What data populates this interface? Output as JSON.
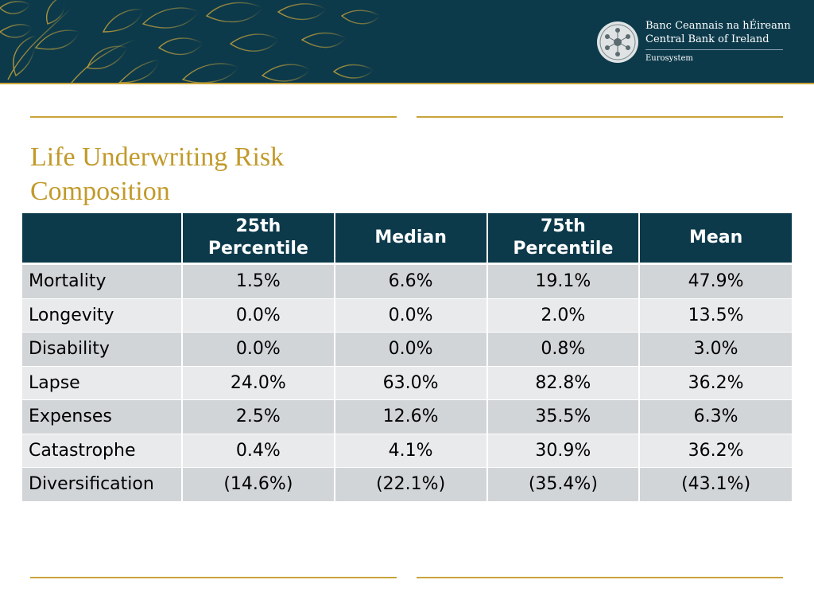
{
  "header": {
    "bank_name_irish": "Banc Ceannais na hÉireann",
    "bank_name_english": "Central Bank of Ireland",
    "eurosystem": "Eurosystem",
    "seal_icon": "central-bank-seal-icon"
  },
  "title": {
    "line1": "Life Underwriting Risk",
    "line2": "Composition"
  },
  "table": {
    "columns": [
      "",
      "25th Percentile",
      "Median",
      "75th Percentile",
      "Mean"
    ],
    "rows": [
      {
        "label": "Mortality",
        "values": [
          "1.5%",
          "6.6%",
          "19.1%",
          "47.9%"
        ]
      },
      {
        "label": "Longevity",
        "values": [
          "0.0%",
          "0.0%",
          "2.0%",
          "13.5%"
        ]
      },
      {
        "label": "Disability",
        "values": [
          "0.0%",
          "0.0%",
          "0.8%",
          "3.0%"
        ]
      },
      {
        "label": "Lapse",
        "values": [
          "24.0%",
          "63.0%",
          "82.8%",
          "36.2%"
        ]
      },
      {
        "label": "Expenses",
        "values": [
          "2.5%",
          "12.6%",
          "35.5%",
          "6.3%"
        ]
      },
      {
        "label": "Catastrophe",
        "values": [
          "0.4%",
          "4.1%",
          "30.9%",
          "36.2%"
        ]
      },
      {
        "label": "Diversification",
        "values": [
          "(14.6%)",
          "(22.1%)",
          "(35.4%)",
          "(43.1%)"
        ]
      }
    ]
  },
  "colors": {
    "header_bg": "#0c3a4b",
    "gold": "#c9a43a",
    "title": "#c19a2a",
    "row_odd": "#d2d5d8",
    "row_even": "#e9eaec"
  }
}
